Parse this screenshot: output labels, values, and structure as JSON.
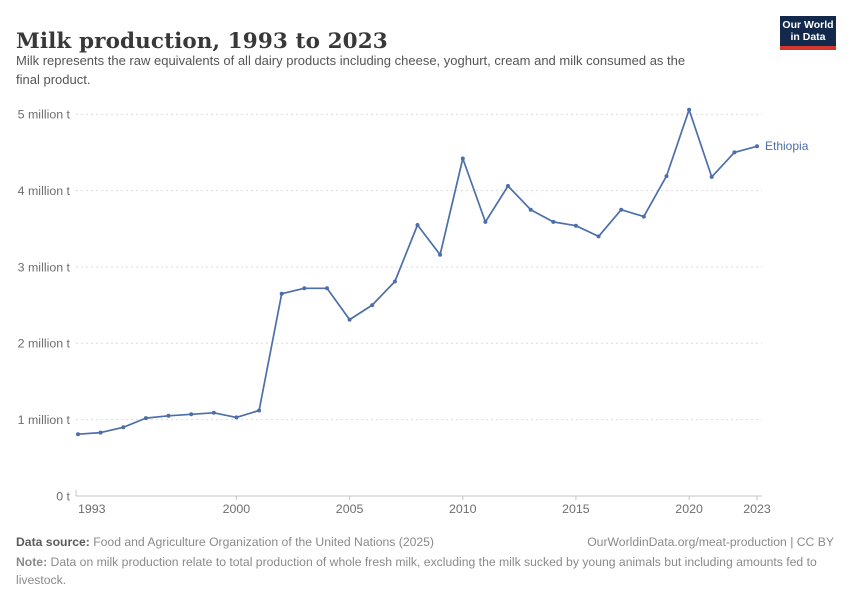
{
  "header": {
    "title": "Milk production, 1993 to 2023",
    "subtitle": "Milk represents the raw equivalents of all dairy products including cheese, yoghurt, cream and milk consumed as the final product.",
    "logo": {
      "line1": "Our World",
      "line2": "in Data",
      "bg_color": "#13294b",
      "accent_color": "#d3362c"
    }
  },
  "chart_data": {
    "type": "line",
    "title": "Milk production, 1993 to 2023",
    "xlabel": "",
    "ylabel": "",
    "unit": "million t",
    "grid": "horizontal dashed",
    "legend_position": "end-of-line label",
    "x": [
      1993,
      1994,
      1995,
      1996,
      1997,
      1998,
      1999,
      2000,
      2001,
      2002,
      2003,
      2004,
      2005,
      2006,
      2007,
      2008,
      2009,
      2010,
      2011,
      2012,
      2013,
      2014,
      2015,
      2016,
      2017,
      2018,
      2019,
      2020,
      2021,
      2022,
      2023
    ],
    "series": [
      {
        "name": "Ethiopia",
        "color": "#4c6ea9",
        "values": [
          0.81,
          0.83,
          0.9,
          1.02,
          1.05,
          1.07,
          1.09,
          1.03,
          1.12,
          2.65,
          2.72,
          2.72,
          2.31,
          2.5,
          2.81,
          3.55,
          3.16,
          4.42,
          3.59,
          4.06,
          3.75,
          3.59,
          3.54,
          3.4,
          3.75,
          3.66,
          4.19,
          5.06,
          4.18,
          4.5,
          4.58
        ]
      }
    ],
    "ylim": [
      0,
      5.3
    ],
    "yticks": [
      {
        "v": 0,
        "label": "0 t"
      },
      {
        "v": 1,
        "label": "1 million t"
      },
      {
        "v": 2,
        "label": "2 million t"
      },
      {
        "v": 3,
        "label": "3 million t"
      },
      {
        "v": 4,
        "label": "4 million t"
      },
      {
        "v": 5,
        "label": "5 million t"
      }
    ],
    "xticks": [
      1993,
      2000,
      2005,
      2010,
      2015,
      2020,
      2023
    ]
  },
  "footer": {
    "data_source_label": "Data source:",
    "data_source_text": " Food and Agriculture Organization of the United Nations (2025)",
    "attribution": "OurWorldinData.org/meat-production | CC BY",
    "note_label": "Note:",
    "note_text": " Data on milk production relate to total production of whole fresh milk, excluding the milk sucked by young animals but including amounts fed to livestock."
  }
}
